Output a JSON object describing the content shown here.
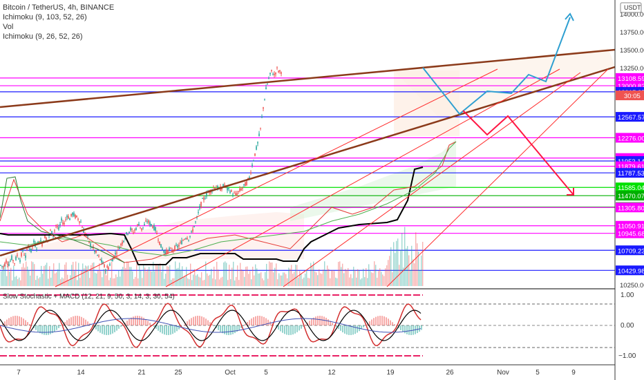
{
  "header": {
    "symbol": "Bitcoin / TetherUS, 4h, BINANCE",
    "indicator_1": "Ichimoku (9, 103, 52, 26)",
    "indicator_2": "Vol",
    "indicator_3": "Ichimoku (9, 26, 52, 26)",
    "oscillator_title": "Slow Stochastic + MACD (12, 21, 9, 50, 3, 14, 3, 30, 54)",
    "currency": "USDT"
  },
  "colors": {
    "candle_up": "#26a69a",
    "candle_down": "#ef5350",
    "trend": "#8b3a1a",
    "red_line": "#ff2b2b",
    "magenta": "#ff00ff",
    "blue": "#1a1aff",
    "green": "#00e000",
    "projection_blue": "#2e9fd1",
    "projection_red": "#ff1744"
  },
  "chart_data": {
    "type": "candlestick",
    "title": "Bitcoin / TetherUS, 4h, BINANCE",
    "ylim": [
      10250,
      14050
    ],
    "price_ticks": [
      "14000.00",
      "13750.00",
      "13500.00",
      "13250.00",
      "10250.00"
    ],
    "x_ticks": [
      "7",
      "14",
      "21",
      "25",
      "Oct",
      "5",
      "12",
      "19",
      "26",
      "Nov",
      "5",
      "9"
    ],
    "countdown": "30:05",
    "levels": [
      {
        "label": "13108.59",
        "price": 13108.59,
        "color": "#ff00ff"
      },
      {
        "label": "13000.82",
        "price": 13000.82,
        "color": "#ff00ff"
      },
      {
        "label": "12915.85",
        "price": 12915.85,
        "color": "#1a1aff"
      },
      {
        "label": "12567.57",
        "price": 12567.57,
        "color": "#1a1aff"
      },
      {
        "label": "12276.00",
        "price": 12276.0,
        "color": "#ff00ff"
      },
      {
        "label": "11993.99",
        "price": 11993.99,
        "color": "#ff00ff"
      },
      {
        "label": "11953.14",
        "price": 11953.14,
        "color": "#1a1aff"
      },
      {
        "label": "11879.61",
        "price": 11879.61,
        "color": "#ff00ff"
      },
      {
        "label": "11787.53",
        "price": 11787.53,
        "color": "#1a1aff"
      },
      {
        "label": "11585.04",
        "price": 11585.04,
        "color": "#00e000"
      },
      {
        "label": "11470.07",
        "price": 11470.07,
        "color": "#00b000"
      },
      {
        "label": "11311.83",
        "price": 11311.83,
        "color": "#00e000"
      },
      {
        "label": "11305.80",
        "price": 11305.8,
        "color": "#ff00ff"
      },
      {
        "label": "11050.91",
        "price": 11050.91,
        "color": "#ff00ff"
      },
      {
        "label": "10945.68",
        "price": 10945.68,
        "color": "#ff00ff"
      },
      {
        "label": "10709.23",
        "price": 10709.23,
        "color": "#1a1aff"
      },
      {
        "label": "10429.98",
        "price": 10429.98,
        "color": "#1a1aff"
      }
    ],
    "price_path": [
      [
        0,
        10500
      ],
      [
        4,
        10480
      ],
      [
        8,
        10560
      ],
      [
        12,
        10520
      ],
      [
        16,
        10600
      ],
      [
        20,
        10540
      ],
      [
        24,
        10640
      ],
      [
        28,
        10580
      ],
      [
        32,
        10700
      ],
      [
        36,
        10620
      ],
      [
        40,
        10780
      ],
      [
        44,
        10700
      ],
      [
        48,
        10820
      ],
      [
        52,
        10750
      ],
      [
        56,
        10860
      ],
      [
        60,
        10800
      ],
      [
        64,
        10900
      ],
      [
        68,
        10850
      ],
      [
        72,
        10980
      ],
      [
        76,
        10920
      ],
      [
        80,
        11060
      ],
      [
        84,
        11000
      ],
      [
        88,
        11120
      ],
      [
        92,
        11080
      ],
      [
        96,
        11200
      ],
      [
        100,
        11150
      ],
      [
        104,
        11220
      ],
      [
        108,
        11180
      ],
      [
        112,
        11150
      ],
      [
        116,
        11100
      ],
      [
        120,
        10980
      ],
      [
        124,
        10920
      ],
      [
        128,
        10820
      ],
      [
        132,
        10760
      ],
      [
        136,
        10700
      ],
      [
        140,
        10640
      ],
      [
        144,
        10580
      ],
      [
        148,
        10520
      ],
      [
        152,
        10450
      ],
      [
        156,
        10470
      ],
      [
        160,
        10560
      ],
      [
        164,
        10620
      ],
      [
        168,
        10700
      ],
      [
        172,
        10760
      ],
      [
        176,
        10820
      ],
      [
        180,
        10900
      ],
      [
        184,
        10960
      ],
      [
        188,
        11000
      ],
      [
        192,
        10960
      ],
      [
        196,
        11020
      ],
      [
        200,
        11080
      ],
      [
        204,
        11000
      ],
      [
        208,
        11060
      ],
      [
        212,
        11120
      ],
      [
        216,
        11080
      ],
      [
        220,
        11050
      ],
      [
        224,
        11000
      ],
      [
        228,
        10880
      ],
      [
        232,
        10760
      ],
      [
        236,
        10700
      ],
      [
        240,
        10680
      ],
      [
        244,
        10720
      ],
      [
        248,
        10700
      ],
      [
        252,
        10740
      ],
      [
        256,
        10760
      ],
      [
        260,
        10800
      ],
      [
        264,
        10850
      ],
      [
        268,
        10900
      ],
      [
        272,
        10880
      ],
      [
        276,
        10940
      ],
      [
        280,
        11050
      ],
      [
        284,
        11150
      ],
      [
        288,
        11300
      ],
      [
        292,
        11400
      ],
      [
        296,
        11450
      ],
      [
        300,
        11520
      ],
      [
        304,
        11540
      ],
      [
        308,
        11580
      ],
      [
        312,
        11600
      ],
      [
        316,
        11550
      ],
      [
        320,
        11580
      ],
      [
        324,
        11620
      ],
      [
        328,
        11560
      ],
      [
        332,
        11540
      ],
      [
        336,
        11500
      ],
      [
        340,
        11480
      ],
      [
        344,
        11520
      ],
      [
        348,
        11560
      ],
      [
        352,
        11600
      ],
      [
        356,
        11650
      ],
      [
        360,
        11720
      ],
      [
        364,
        11900
      ],
      [
        368,
        12050
      ],
      [
        372,
        12200
      ],
      [
        376,
        12400
      ],
      [
        380,
        12700
      ],
      [
        384,
        12950
      ],
      [
        388,
        13100
      ],
      [
        392,
        13200
      ],
      [
        396,
        13150
      ],
      [
        400,
        13230
      ],
      [
        404,
        13190
      ],
      [
        408,
        13210
      ]
    ]
  }
}
